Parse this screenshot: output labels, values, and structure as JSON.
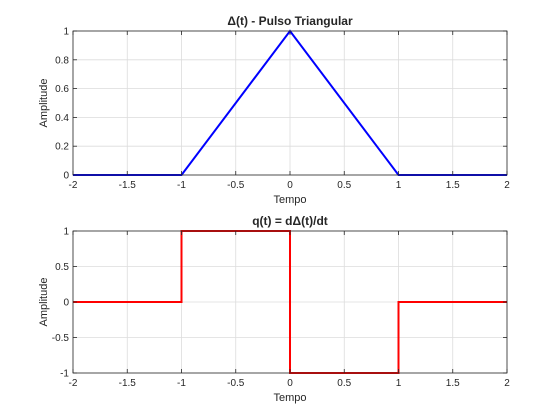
{
  "chart_data": [
    {
      "type": "line",
      "title": "Δ(t) - Pulso Triangular",
      "xlabel": "Tempo",
      "ylabel": "Amplitude",
      "xlim": [
        -2,
        2
      ],
      "ylim": [
        0,
        1
      ],
      "xticks": [
        -2,
        -1.5,
        -1,
        -0.5,
        0,
        0.5,
        1,
        1.5,
        2
      ],
      "yticks": [
        0,
        0.2,
        0.4,
        0.6,
        0.8,
        1
      ],
      "xtick_labels": [
        "-2",
        "-1.5",
        "-1",
        "-0.5",
        "0",
        "0.5",
        "1",
        "1.5",
        "2"
      ],
      "ytick_labels": [
        "0",
        "0.2",
        "0.4",
        "0.6",
        "0.8",
        "1"
      ],
      "grid": true,
      "series": [
        {
          "color": "#0000ff",
          "x": [
            -2,
            -1,
            0,
            1,
            2
          ],
          "y": [
            0,
            0,
            1,
            0,
            0
          ]
        }
      ]
    },
    {
      "type": "line",
      "title": "q(t) = dΔ(t)/dt",
      "xlabel": "Tempo",
      "ylabel": "Amplitude",
      "xlim": [
        -2,
        2
      ],
      "ylim": [
        -1,
        1
      ],
      "xticks": [
        -2,
        -1.5,
        -1,
        -0.5,
        0,
        0.5,
        1,
        1.5,
        2
      ],
      "yticks": [
        -1,
        -0.5,
        0,
        0.5,
        1
      ],
      "xtick_labels": [
        "-2",
        "-1.5",
        "-1",
        "-0.5",
        "0",
        "0.5",
        "1",
        "1.5",
        "2"
      ],
      "ytick_labels": [
        "-1",
        "-0.5",
        "0",
        "0.5",
        "1"
      ],
      "grid": true,
      "series": [
        {
          "color": "#ff0000",
          "x": [
            -2,
            -1,
            -1,
            0,
            0,
            1,
            1,
            2
          ],
          "y": [
            0,
            0,
            1,
            1,
            -1,
            -1,
            0,
            0
          ]
        }
      ]
    }
  ]
}
